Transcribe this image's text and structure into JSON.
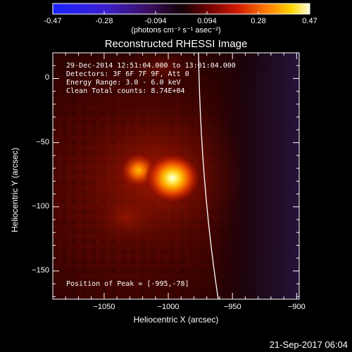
{
  "colorbar": {
    "ticks": [
      "-0.47",
      "-0.28",
      "-0.094",
      "0.094",
      "0.28",
      "0.47"
    ],
    "units": "(photons cm⁻² s⁻¹ asec⁻²)",
    "range": [
      -0.47,
      0.47
    ],
    "colormap": "black-red-orange-yellow-white (positive), blue-purple (negative)"
  },
  "title": "Reconstructed RHESSI Image",
  "info": {
    "line1": "29-Dec-2014 12:51:04.000 to 13:01:04.000",
    "line2": "Detectors: 3F 6F 7F 9F, Att 0",
    "line3": "Energy Range: 3.0 - 6.0 keV",
    "line4": "Clean     Total counts: 8.74E+04",
    "peak": "Position of Peak = [-995,-78]"
  },
  "footer": "21-Sep-2017 06:04",
  "chart_data": {
    "type": "heatmap",
    "title": "Reconstructed RHESSI Image",
    "xlabel": "Heliocentric X (arcsec)",
    "ylabel": "Heliocentric Y (arcsec)",
    "xlim": [
      -1090,
      -898
    ],
    "ylim": [
      -172,
      20
    ],
    "x_ticks": [
      -1050,
      -1000,
      -950,
      -900
    ],
    "y_ticks": [
      0,
      -50,
      -100,
      -150
    ],
    "x_tick_labels": [
      "−1050",
      "−1000",
      "−950",
      "−900"
    ],
    "y_tick_labels": [
      "0",
      "−50",
      "−100",
      "−150"
    ],
    "peak": {
      "x": -995,
      "y": -78,
      "value": 0.47
    },
    "secondary_source": {
      "x": -1022,
      "y": -72
    },
    "limb": "solar limb arc from about (-973, 20) to (-961, -172)"
  }
}
